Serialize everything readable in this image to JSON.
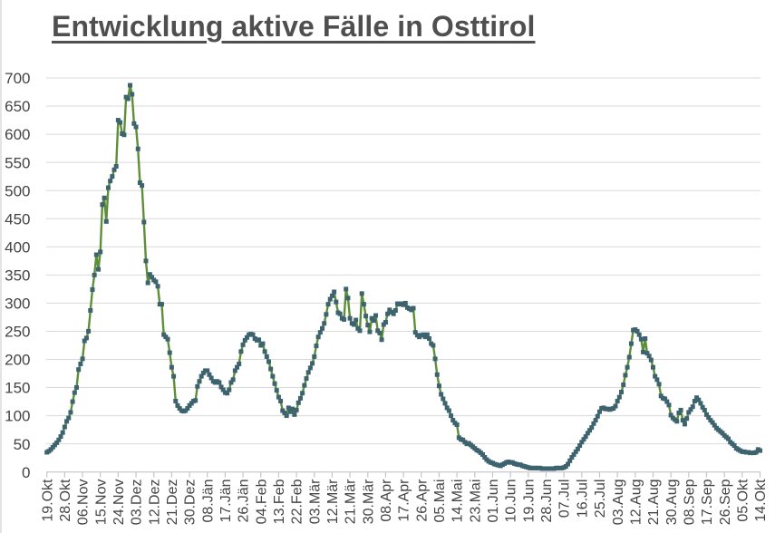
{
  "title": "Entwicklung aktive Fälle in Osttirol",
  "colors": {
    "line": "#5f8e39",
    "marker": "#3d636f",
    "grid": "#d9d9d9",
    "axis": "#c3c6c9",
    "tick": "#c3c6c9",
    "title_text": "#4f4f4f",
    "axis_text": "#444444",
    "left_border": "#d9d9d9",
    "background": "#ffffff"
  },
  "chart_data": {
    "type": "line",
    "title": "Entwicklung aktive Fälle in Osttirol",
    "xlabel": "",
    "ylabel": "",
    "ylim": [
      0,
      700
    ],
    "y_tick_step": 50,
    "y_tick_labels": [
      "0",
      "50",
      "100",
      "150",
      "200",
      "250",
      "300",
      "350",
      "400",
      "450",
      "500",
      "550",
      "600",
      "650",
      "700"
    ],
    "x_tick_labels": [
      "19.Okt",
      "28.Okt",
      "06.Nov",
      "15.Nov",
      "24.Nov",
      "03.Dez",
      "12.Dez",
      "21.Dez",
      "30.Dez",
      "08.Jän",
      "17.Jän",
      "26.Jän",
      "04.Feb",
      "13.Feb",
      "22.Feb",
      "03.Mär",
      "12.Mär",
      "21.Mär",
      "30.Mär",
      "08.Apr",
      "17.Apr",
      "26.Apr",
      "05.Mai",
      "14.Mai",
      "23.Mai",
      "01.Jun",
      "10.Jun",
      "19.Jun",
      "28.Jun",
      "07.Jul",
      "16.Jul",
      "25.Jul",
      "03.Aug",
      "12.Aug",
      "21.Aug",
      "30.Aug",
      "08.Sep",
      "17.Sep",
      "26.Sep",
      "05.Okt",
      "14.Okt"
    ],
    "x_tick_interval_points": 9,
    "grid": "horizontal",
    "legend": "none",
    "marker": "square",
    "series": [
      {
        "name": "aktive Fälle",
        "values": [
          35,
          37,
          40,
          44,
          48,
          52,
          57,
          63,
          70,
          80,
          90,
          96,
          106,
          125,
          141,
          150,
          182,
          192,
          201,
          233,
          238,
          250,
          287,
          324,
          350,
          386,
          360,
          391,
          475,
          487,
          445,
          505,
          517,
          525,
          537,
          543,
          625,
          621,
          601,
          599,
          666,
          663,
          687,
          671,
          619,
          613,
          574,
          514,
          509,
          444,
          375,
          336,
          351,
          346,
          341,
          338,
          330,
          298,
          298,
          244,
          240,
          236,
          212,
          186,
          170,
          126,
          118,
          113,
          109,
          108,
          109,
          113,
          118,
          122,
          126,
          127,
          152,
          161,
          170,
          176,
          180,
          180,
          173,
          167,
          161,
          159,
          161,
          159,
          151,
          146,
          141,
          140,
          146,
          159,
          164,
          180,
          186,
          192,
          214,
          226,
          234,
          239,
          244,
          245,
          244,
          237,
          234,
          235,
          225,
          228,
          214,
          205,
          196,
          183,
          170,
          157,
          145,
          133,
          126,
          109,
          105,
          100,
          114,
          107,
          112,
          102,
          110,
          123,
          131,
          140,
          154,
          166,
          177,
          185,
          193,
          205,
          224,
          240,
          248,
          255,
          264,
          280,
          298,
          307,
          313,
          320,
          302,
          283,
          281,
          273,
          271,
          325,
          309,
          273,
          264,
          262,
          270,
          255,
          251,
          317,
          298,
          277,
          261,
          249,
          273,
          269,
          278,
          251,
          247,
          235,
          262,
          266,
          281,
          288,
          284,
          281,
          287,
          299,
          298,
          299,
          297,
          300,
          292,
          290,
          288,
          291,
          248,
          243,
          240,
          243,
          244,
          240,
          244,
          237,
          228,
          225,
          201,
          173,
          153,
          138,
          130,
          122,
          114,
          109,
          100,
          92,
          87,
          84,
          61,
          58,
          57,
          53,
          50,
          51,
          48,
          45,
          42,
          39,
          37,
          34,
          31,
          26,
          22,
          19,
          17,
          16,
          14,
          13,
          12,
          11,
          13,
          15,
          17,
          18,
          17,
          17,
          15,
          14,
          13,
          13,
          11,
          10,
          9,
          8,
          7,
          7,
          7,
          7,
          7,
          7,
          6,
          6,
          6,
          6,
          6,
          6,
          6,
          7,
          7,
          7,
          7,
          8,
          10,
          14,
          20,
          26,
          31,
          36,
          41,
          47,
          53,
          58,
          63,
          69,
          74,
          79,
          86,
          92,
          99,
          107,
          113,
          114,
          112,
          112,
          111,
          112,
          113,
          117,
          126,
          133,
          142,
          155,
          172,
          186,
          204,
          228,
          252,
          253,
          250,
          244,
          236,
          213,
          237,
          211,
          206,
          199,
          186,
          170,
          164,
          156,
          135,
          131,
          130,
          125,
          119,
          101,
          96,
          93,
          90,
          105,
          110,
          92,
          85,
          95,
          106,
          111,
          116,
          126,
          132,
          128,
          122,
          115,
          110,
          102,
          97,
          92,
          88,
          83,
          78,
          75,
          72,
          69,
          65,
          62,
          59,
          53,
          50,
          47,
          42,
          40,
          38,
          36,
          36,
          35,
          35,
          34,
          34,
          34,
          35,
          40,
          38
        ]
      }
    ]
  }
}
